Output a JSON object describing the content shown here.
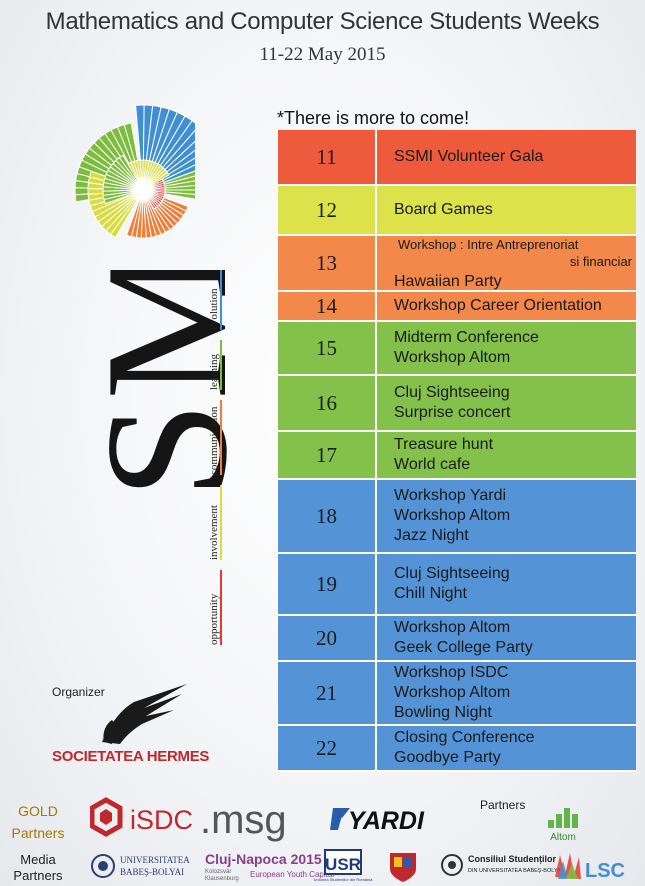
{
  "header": {
    "title": "Mathematics and Computer Science Students Weeks",
    "dates": "11-22 May 2015"
  },
  "logo": {
    "word": "SSMI",
    "values": [
      "opportunity",
      "involvement",
      "communication",
      "learning",
      "evolution"
    ],
    "value_colors": [
      "#e8372f",
      "#d8dc3f",
      "#f07d38",
      "#7cbd3e",
      "#3f8fd2"
    ]
  },
  "note": "*There is more to come!",
  "schedule": [
    {
      "day": "11",
      "color": "#ee5a3c",
      "events": [
        "SSMI Volunteer Gala"
      ]
    },
    {
      "day": "12",
      "color": "#dce24a",
      "events": [
        "Board Games"
      ]
    },
    {
      "day": "13",
      "color": "#f3884b",
      "workshop_head": "Workshop : Intre Antreprenoriat",
      "workshop_tail": "si financiar",
      "events": [
        "Hawaiian Party"
      ]
    },
    {
      "day": "14",
      "color": "#f3884b",
      "events": [
        "Workshop Career Orientation"
      ]
    },
    {
      "day": "15",
      "color": "#84c14a",
      "events": [
        "Midterm Conference",
        "Workshop Altom"
      ]
    },
    {
      "day": "16",
      "color": "#84c14a",
      "events": [
        "Cluj Sightseeing",
        "Surprise concert"
      ]
    },
    {
      "day": "17",
      "color": "#84c14a",
      "events": [
        "Treasure hunt",
        "World cafe"
      ]
    },
    {
      "day": "18",
      "color": "#5494d6",
      "events": [
        "Workshop Yardi",
        "Workshop Altom",
        "Jazz Night"
      ]
    },
    {
      "day": "19",
      "color": "#5494d6",
      "events": [
        "Cluj Sightseeing",
        "Chill Night"
      ]
    },
    {
      "day": "20",
      "color": "#5494d6",
      "events": [
        "Workshop Altom",
        "Geek College Party"
      ]
    },
    {
      "day": "21",
      "color": "#5494d6",
      "events": [
        "Workshop ISDC",
        "Workshop Altom",
        "Bowling Night"
      ]
    },
    {
      "day": "22",
      "color": "#5494d6",
      "events": [
        "Closing Conference",
        "Goodbye Party"
      ]
    }
  ],
  "organizer": {
    "label": "Organizer",
    "name": "SOCIETATEA HERMES"
  },
  "gold_partners": {
    "label_line1": "GOLD",
    "label_line2": "Partners",
    "logos": [
      "iSDC",
      ".msg",
      "YARDI"
    ]
  },
  "partners": {
    "label": "Partners",
    "logos": [
      "Altom"
    ]
  },
  "media_partners": {
    "label_line1": "Media",
    "label_line2": "Partners",
    "ubb_line1": "UNIVERSITATEA",
    "ubb_line2": "BABEȘ-BOLYAI",
    "cluj_main": "Cluj-Napoca 2015",
    "cluj_sub1": "Kolozsvár",
    "cluj_sub2": "Klausenburg",
    "cluj_sub3": "European Youth Capital",
    "usr": "USR",
    "usr_sub": "Uniunea Studenților din România",
    "consiliul_line1": "Consiliul Studenților",
    "consiliul_line2": "DIN UNIVERSITATEA BABEȘ-BOLYAI",
    "lsc": "LSC"
  }
}
